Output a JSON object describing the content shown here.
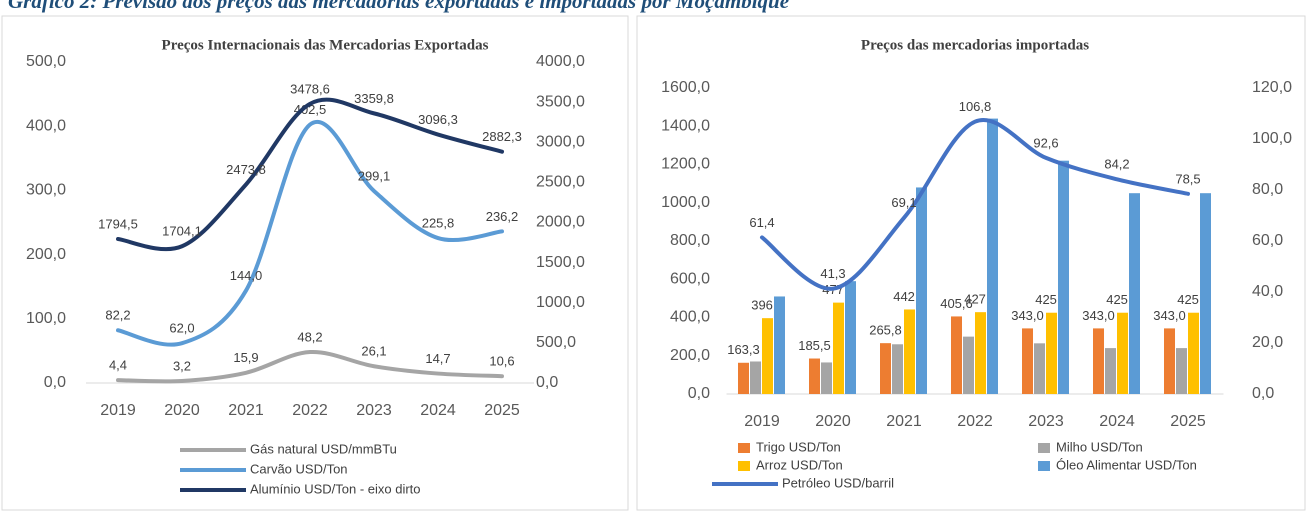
{
  "header": {
    "title": "Gráfico 2: Previsão dos preços das mercadorias exportadas e importadas por Moçambique"
  },
  "chart_data": [
    {
      "type": "line",
      "title": "Preços Internacionais das Mercadorias Exportadas",
      "categories": [
        "2019",
        "2020",
        "2021",
        "2022",
        "2023",
        "2024",
        "2025"
      ],
      "ylim": [
        0,
        500
      ],
      "yticks": [
        {
          "value": 0,
          "label": "0,0"
        },
        {
          "value": 100,
          "label": "100,0"
        },
        {
          "value": 200,
          "label": "200,0"
        },
        {
          "value": 300,
          "label": "300,0"
        },
        {
          "value": 400,
          "label": "400,0"
        },
        {
          "value": 500,
          "label": "500,0"
        }
      ],
      "y2lim": [
        0,
        4000
      ],
      "y2ticks": [
        {
          "value": 0,
          "label": "0,0"
        },
        {
          "value": 500,
          "label": "500,0"
        },
        {
          "value": 1000,
          "label": "1000,0"
        },
        {
          "value": 1500,
          "label": "1500,0"
        },
        {
          "value": 2000,
          "label": "2000,0"
        },
        {
          "value": 2500,
          "label": "2500,0"
        },
        {
          "value": 3000,
          "label": "3000,0"
        },
        {
          "value": 3500,
          "label": "3500,0"
        },
        {
          "value": 4000,
          "label": "4000,0"
        }
      ],
      "legend": "bottom",
      "smooth": true,
      "series": [
        {
          "name": "Gás natural USD/mmBTu",
          "color": "#a5a5a5",
          "values": [
            4.4,
            3.2,
            15.9,
            48.2,
            26.1,
            14.7,
            10.6
          ],
          "value_labels": [
            "4,4",
            "3,2",
            "15,9",
            "48,2",
            "26,1",
            "14,7",
            "10,6"
          ]
        },
        {
          "name": "Carvão USD/Ton",
          "color": "#5b9bd5",
          "values": [
            82.2,
            62.0,
            144.0,
            402.5,
            299.1,
            225.8,
            236.2
          ],
          "value_labels": [
            "82,2",
            "62,0",
            "144,0",
            "402,5",
            "299,1",
            "225,8",
            "236,2"
          ]
        },
        {
          "name": "Alumínio USD/Ton - eixo dirto",
          "color": "#203864",
          "axis": "y2",
          "values": [
            1794.5,
            1704.1,
            2473.8,
            3478.6,
            3359.8,
            3096.3,
            2882.3
          ],
          "value_labels": [
            "1794,5",
            "1704,1",
            "2473,8",
            "3478,6",
            "3359,8",
            "3096,3",
            "2882,3"
          ]
        }
      ]
    },
    {
      "type": "bar",
      "title": "Preços das mercadorias importadas",
      "categories": [
        "2019",
        "2020",
        "2021",
        "2022",
        "2023",
        "2024",
        "2025"
      ],
      "ylim": [
        0,
        1600
      ],
      "yticks": [
        {
          "value": 0,
          "label": "0,0"
        },
        {
          "value": 200,
          "label": "200,0"
        },
        {
          "value": 400,
          "label": "400,0"
        },
        {
          "value": 600,
          "label": "600,0"
        },
        {
          "value": 800,
          "label": "800,0"
        },
        {
          "value": 1000,
          "label": "1000,0"
        },
        {
          "value": 1200,
          "label": "1200,0"
        },
        {
          "value": 1400,
          "label": "1400,0"
        },
        {
          "value": 1600,
          "label": "1600,0"
        }
      ],
      "y2lim": [
        0,
        120
      ],
      "y2ticks": [
        {
          "value": 0,
          "label": "0,0"
        },
        {
          "value": 20,
          "label": "20,0"
        },
        {
          "value": 40,
          "label": "40,0"
        },
        {
          "value": 60,
          "label": "60,0"
        },
        {
          "value": 80,
          "label": "80,0"
        },
        {
          "value": 100,
          "label": "100,0"
        },
        {
          "value": 120,
          "label": "120,0"
        }
      ],
      "legend": "bottom",
      "smooth": true,
      "series": [
        {
          "name": "Trigo USD/Ton",
          "color": "#ed7d31",
          "values": [
            163.3,
            185.5,
            265.8,
            405.6,
            343.0,
            343.0,
            343.0
          ],
          "value_labels": [
            "163,3",
            "185,5",
            "265,8",
            "405,6",
            "343,0",
            "343,0",
            "343,0"
          ]
        },
        {
          "name": "Milho USD/Ton",
          "color": "#a5a5a5",
          "values": [
            170,
            165,
            260,
            300,
            265,
            240,
            240
          ]
        },
        {
          "name": "Arroz USD/Ton",
          "color": "#ffc000",
          "values": [
            396.5,
            477.8,
            442.0,
            427.9,
            425.0,
            425.0,
            425.0
          ],
          "value_labels": [
            "396,5",
            "477,8",
            "442,0",
            "427,9",
            "425,0",
            "425,0",
            "425,0"
          ]
        },
        {
          "name": "Óleo Alimentar USD/Ton",
          "color": "#5b9bd5",
          "values": [
            510,
            590,
            1080,
            1440,
            1220,
            1050,
            1050
          ]
        },
        {
          "name": "Petróleo USD/barril",
          "color": "#4472c4",
          "type": "line",
          "axis": "y2",
          "values": [
            61.4,
            41.3,
            69.1,
            106.8,
            92.6,
            84.2,
            78.5
          ],
          "value_labels": [
            "61,4",
            "41,3",
            "69,1",
            "106,8",
            "92,6",
            "84,2",
            "78,5"
          ]
        }
      ]
    }
  ]
}
